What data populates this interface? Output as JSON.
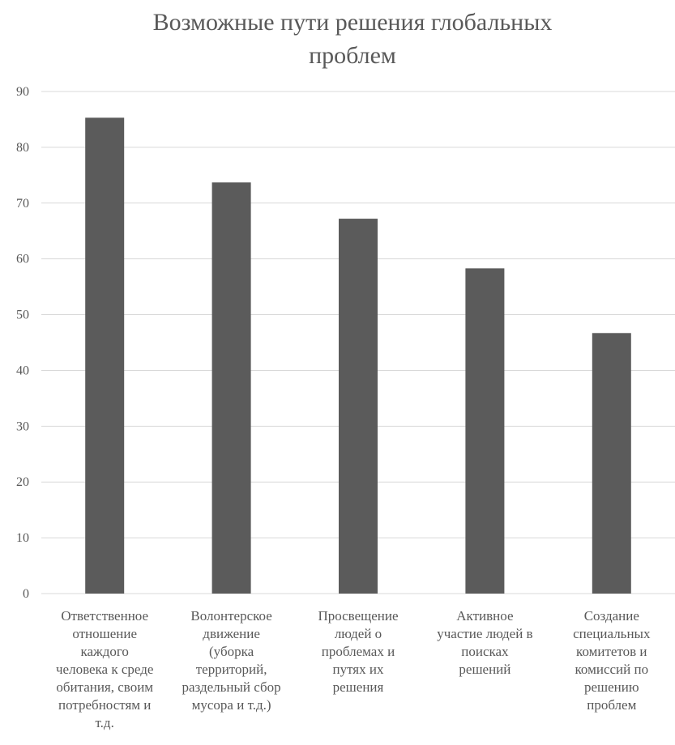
{
  "chart_data": {
    "type": "bar",
    "title": "Возможные пути решения глобальных проблем",
    "title_lines": [
      "Возможные пути решения глобальных",
      "проблем"
    ],
    "categories": [
      "Ответственное отношение каждого человека к среде обитания, своим потребностям и т.д.",
      "Волонтерское движение (уборка территорий, раздельный сбор мусора и т.д.)",
      "Просвещение людей о проблемах и путях их решения",
      "Активное участие людей в поисках решений",
      "Создание специальных комитетов и комиссий по решению проблем"
    ],
    "category_lines": [
      [
        "Ответственное",
        "отношение",
        "каждого",
        "человека к среде",
        "обитания, своим",
        "потребностям и",
        "т.д."
      ],
      [
        "Волонтерское",
        "движение",
        "(уборка",
        "территорий,",
        "раздельный сбор",
        "мусора и т.д.)"
      ],
      [
        "Просвещение",
        "людей о",
        "проблемах и",
        "путях их",
        "решения"
      ],
      [
        "Активное",
        "участие людей в",
        "поисках",
        "решений"
      ],
      [
        "Создание",
        "специальных",
        "комитетов и",
        "комиссий по",
        "решению",
        "проблем"
      ]
    ],
    "values": [
      85.3,
      73.7,
      67.2,
      58.3,
      46.7
    ],
    "ylim": [
      0,
      90
    ],
    "yticks": [
      "0",
      "10",
      "20",
      "30",
      "40",
      "50",
      "60",
      "70",
      "80",
      "90"
    ],
    "xlabel": "",
    "ylabel": "",
    "grid": true,
    "legend": "none",
    "bar_color": "#5b5b5b",
    "grid_color": "#d9d9d9",
    "text_color": "#595959"
  }
}
